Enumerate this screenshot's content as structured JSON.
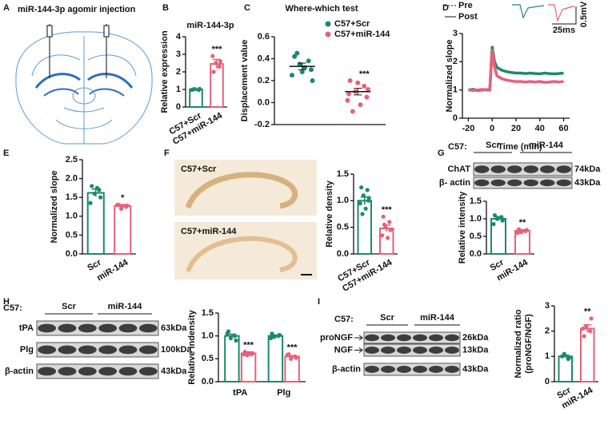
{
  "panel_letters": [
    "A",
    "B",
    "C",
    "D",
    "E",
    "F",
    "G",
    "H",
    "I"
  ],
  "panel_a": {
    "title": "miR-144-3p agomir injection"
  },
  "panel_f_images": [
    "C57+Scr",
    "C57+miR-144"
  ],
  "blots": [
    {
      "group_label": "C57:",
      "groups": [
        "Scr",
        "miR-144"
      ],
      "rows": [
        {
          "label": "ChAT",
          "size": "74kDa"
        },
        {
          "label": "β- actin",
          "size": "43kDa"
        }
      ]
    },
    {
      "group_label": "C57:",
      "groups": [
        "Scr",
        "miR-144"
      ],
      "rows": [
        {
          "label": "tPA",
          "size": "63kDa"
        },
        {
          "label": "Plg",
          "size": "100kDa"
        },
        {
          "label": "β-actin",
          "size": "43kDa"
        }
      ]
    },
    {
      "group_label": "C57:",
      "groups": [
        "Scr",
        "miR-144"
      ],
      "rows": [
        {
          "label": "proNGF",
          "size": "26kDa"
        },
        {
          "label": "NGF",
          "size": "13kDa"
        },
        {
          "label": "β-actin",
          "size": "43kDa"
        }
      ]
    }
  ],
  "chart_data": [
    {
      "type": "bar",
      "title": "miR-144-3p",
      "ylabel": "Relative expression",
      "categories": [
        "C57+Scr",
        "C57+miR-144"
      ],
      "values": [
        1.0,
        2.45
      ],
      "errors": [
        0.02,
        0.25
      ],
      "points": [
        [
          1.0,
          0.97,
          1.02,
          1.03,
          0.98
        ],
        [
          2.0,
          2.3,
          2.5,
          2.6,
          2.9
        ]
      ],
      "colors": [
        "#1b8a6b",
        "#e8607a"
      ],
      "ylim": [
        0,
        4
      ],
      "yticks": [
        0,
        1,
        2,
        3,
        4
      ],
      "significance": "***"
    },
    {
      "type": "dot",
      "title": "Where-which test",
      "ylabel": "Displacement value",
      "series": [
        {
          "name": "C57+Scr",
          "color": "#1b8a6b",
          "mean": 0.33,
          "error": 0.03,
          "points": [
            0.42,
            0.38,
            0.35,
            0.3,
            0.25,
            0.32,
            0.45,
            0.2,
            0.28
          ]
        },
        {
          "name": "C57+miR-144",
          "color": "#e8607a",
          "mean": 0.1,
          "error": 0.03,
          "points": [
            0.2,
            0.15,
            0.1,
            0.05,
            0.02,
            -0.02,
            -0.08,
            0.12,
            0.18,
            0.08
          ]
        }
      ],
      "ylim": [
        -0.2,
        0.6
      ],
      "yticks": [
        -0.2,
        {
          "value": 0,
          "label": "0.0"
        },
        0.2,
        0.4,
        0.6
      ],
      "significance": "***"
    },
    {
      "type": "line",
      "ylabel": "Normalized slope",
      "xlabel": "Time (min)",
      "legend_traces": [
        "Pre",
        "Post"
      ],
      "scale_labels": [
        "25ms",
        "0.5mV"
      ],
      "x": [
        -20,
        -16,
        -12,
        -8,
        -4,
        -2,
        0,
        2,
        4,
        8,
        12,
        16,
        20,
        24,
        28,
        32,
        36,
        40,
        44,
        48,
        52,
        56,
        60
      ],
      "series": [
        {
          "color": "#1b8a6b",
          "values": [
            1.0,
            1.02,
            0.98,
            1.0,
            1.01,
            1.0,
            2.55,
            2.0,
            1.8,
            1.7,
            1.65,
            1.62,
            1.6,
            1.6,
            1.58,
            1.6,
            1.58,
            1.57,
            1.6,
            1.58,
            1.57,
            1.58,
            1.6
          ]
        },
        {
          "color": "#e8607a",
          "values": [
            1.0,
            0.98,
            1.0,
            1.02,
            0.99,
            1.0,
            2.45,
            1.8,
            1.5,
            1.4,
            1.35,
            1.32,
            1.3,
            1.3,
            1.28,
            1.3,
            1.28,
            1.3,
            1.27,
            1.28,
            1.3,
            1.28,
            1.3
          ]
        }
      ],
      "xlim": [
        -25,
        65
      ],
      "xticks": [
        -20,
        0,
        20,
        40,
        60
      ],
      "ylim": [
        0,
        3
      ],
      "yticks": [
        0,
        1,
        2,
        3
      ]
    },
    {
      "type": "bar",
      "ylabel": "Normalized slope",
      "categories": [
        "Scr",
        "miR-144"
      ],
      "values": [
        1.62,
        1.27
      ],
      "errors": [
        0.1,
        0.04
      ],
      "points": [
        [
          1.8,
          1.7,
          1.6,
          1.5,
          1.35,
          1.75
        ],
        [
          1.3,
          1.25,
          1.2,
          1.28,
          1.3
        ]
      ],
      "colors": [
        "#1b8a6b",
        "#e8607a"
      ],
      "ylim": [
        0,
        2.5
      ],
      "yticks": [
        {
          "value": 0,
          "label": "0.0"
        },
        0.5,
        {
          "value": 1,
          "label": "1.0"
        },
        1.5,
        {
          "value": 2,
          "label": "2.0"
        },
        2.5
      ],
      "significance": "*"
    },
    {
      "type": "bar",
      "ylabel": "Relative density",
      "categories": [
        "C57+Scr",
        "C57+miR-144"
      ],
      "values": [
        1.0,
        0.48
      ],
      "errors": [
        0.07,
        0.06
      ],
      "points": [
        [
          1.25,
          1.2,
          1.1,
          1.0,
          0.95,
          0.85,
          0.75,
          1.05
        ],
        [
          0.7,
          0.6,
          0.5,
          0.45,
          0.35,
          0.3,
          0.55
        ]
      ],
      "colors": [
        "#1b8a6b",
        "#e8607a"
      ],
      "ylim": [
        0,
        1.5
      ],
      "yticks": [
        {
          "value": 0,
          "label": "0.0"
        },
        0.5,
        {
          "value": 1,
          "label": "1.0"
        },
        1.5
      ],
      "significance": "***"
    },
    {
      "type": "bar",
      "ylabel": "Relative intensity",
      "categories": [
        "Scr",
        "miR-144"
      ],
      "values": [
        1.0,
        0.66
      ],
      "errors": [
        0.06,
        0.03
      ],
      "points": [
        [
          1.1,
          1.05,
          1.0,
          0.95,
          0.85
        ],
        [
          0.7,
          0.65,
          0.62,
          0.68,
          0.6
        ]
      ],
      "colors": [
        "#1b8a6b",
        "#e8607a"
      ],
      "ylim": [
        0,
        1.5
      ],
      "yticks": [
        {
          "value": 0,
          "label": "0.0"
        },
        0.5,
        {
          "value": 1,
          "label": "1.0"
        },
        1.5
      ],
      "significance": "**"
    },
    {
      "type": "groupbar",
      "ylabel": "Relative indensity",
      "categories": [
        "tPA",
        "Plg"
      ],
      "series": [
        {
          "color": "#1b8a6b",
          "values": [
            1.0,
            1.0
          ],
          "errors": [
            0.04,
            0.02
          ],
          "points": [
            [
              1.1,
              1.0,
              0.95,
              0.9,
              1.05
            ],
            [
              1.05,
              1.0,
              0.98,
              1.02,
              0.95
            ]
          ]
        },
        {
          "color": "#e8607a",
          "values": [
            0.62,
            0.55
          ],
          "errors": [
            0.03,
            0.02
          ],
          "points": [
            [
              0.65,
              0.6,
              0.58,
              0.62,
              0.6
            ],
            [
              0.6,
              0.55,
              0.5,
              0.52,
              0.58
            ]
          ]
        }
      ],
      "ylim": [
        0,
        1.5
      ],
      "yticks": [
        {
          "value": 0,
          "label": "0.0"
        },
        0.5,
        {
          "value": 1,
          "label": "1.0"
        },
        1.5
      ],
      "significance": [
        "***",
        "***"
      ]
    },
    {
      "type": "bar",
      "ylabel": [
        "Normalized ratio",
        "(proNGF/NGF)"
      ],
      "categories": [
        "Scr",
        "miR-144"
      ],
      "values": [
        1.0,
        2.1
      ],
      "errors": [
        0.05,
        0.15
      ],
      "points": [
        [
          1.0,
          0.9,
          1.1,
          0.95
        ],
        [
          1.8,
          2.0,
          2.2,
          2.5,
          2.1
        ]
      ],
      "colors": [
        "#1b8a6b",
        "#e8607a"
      ],
      "ylim": [
        0,
        3
      ],
      "yticks": [
        0,
        1,
        2,
        3
      ],
      "significance": "**"
    }
  ]
}
